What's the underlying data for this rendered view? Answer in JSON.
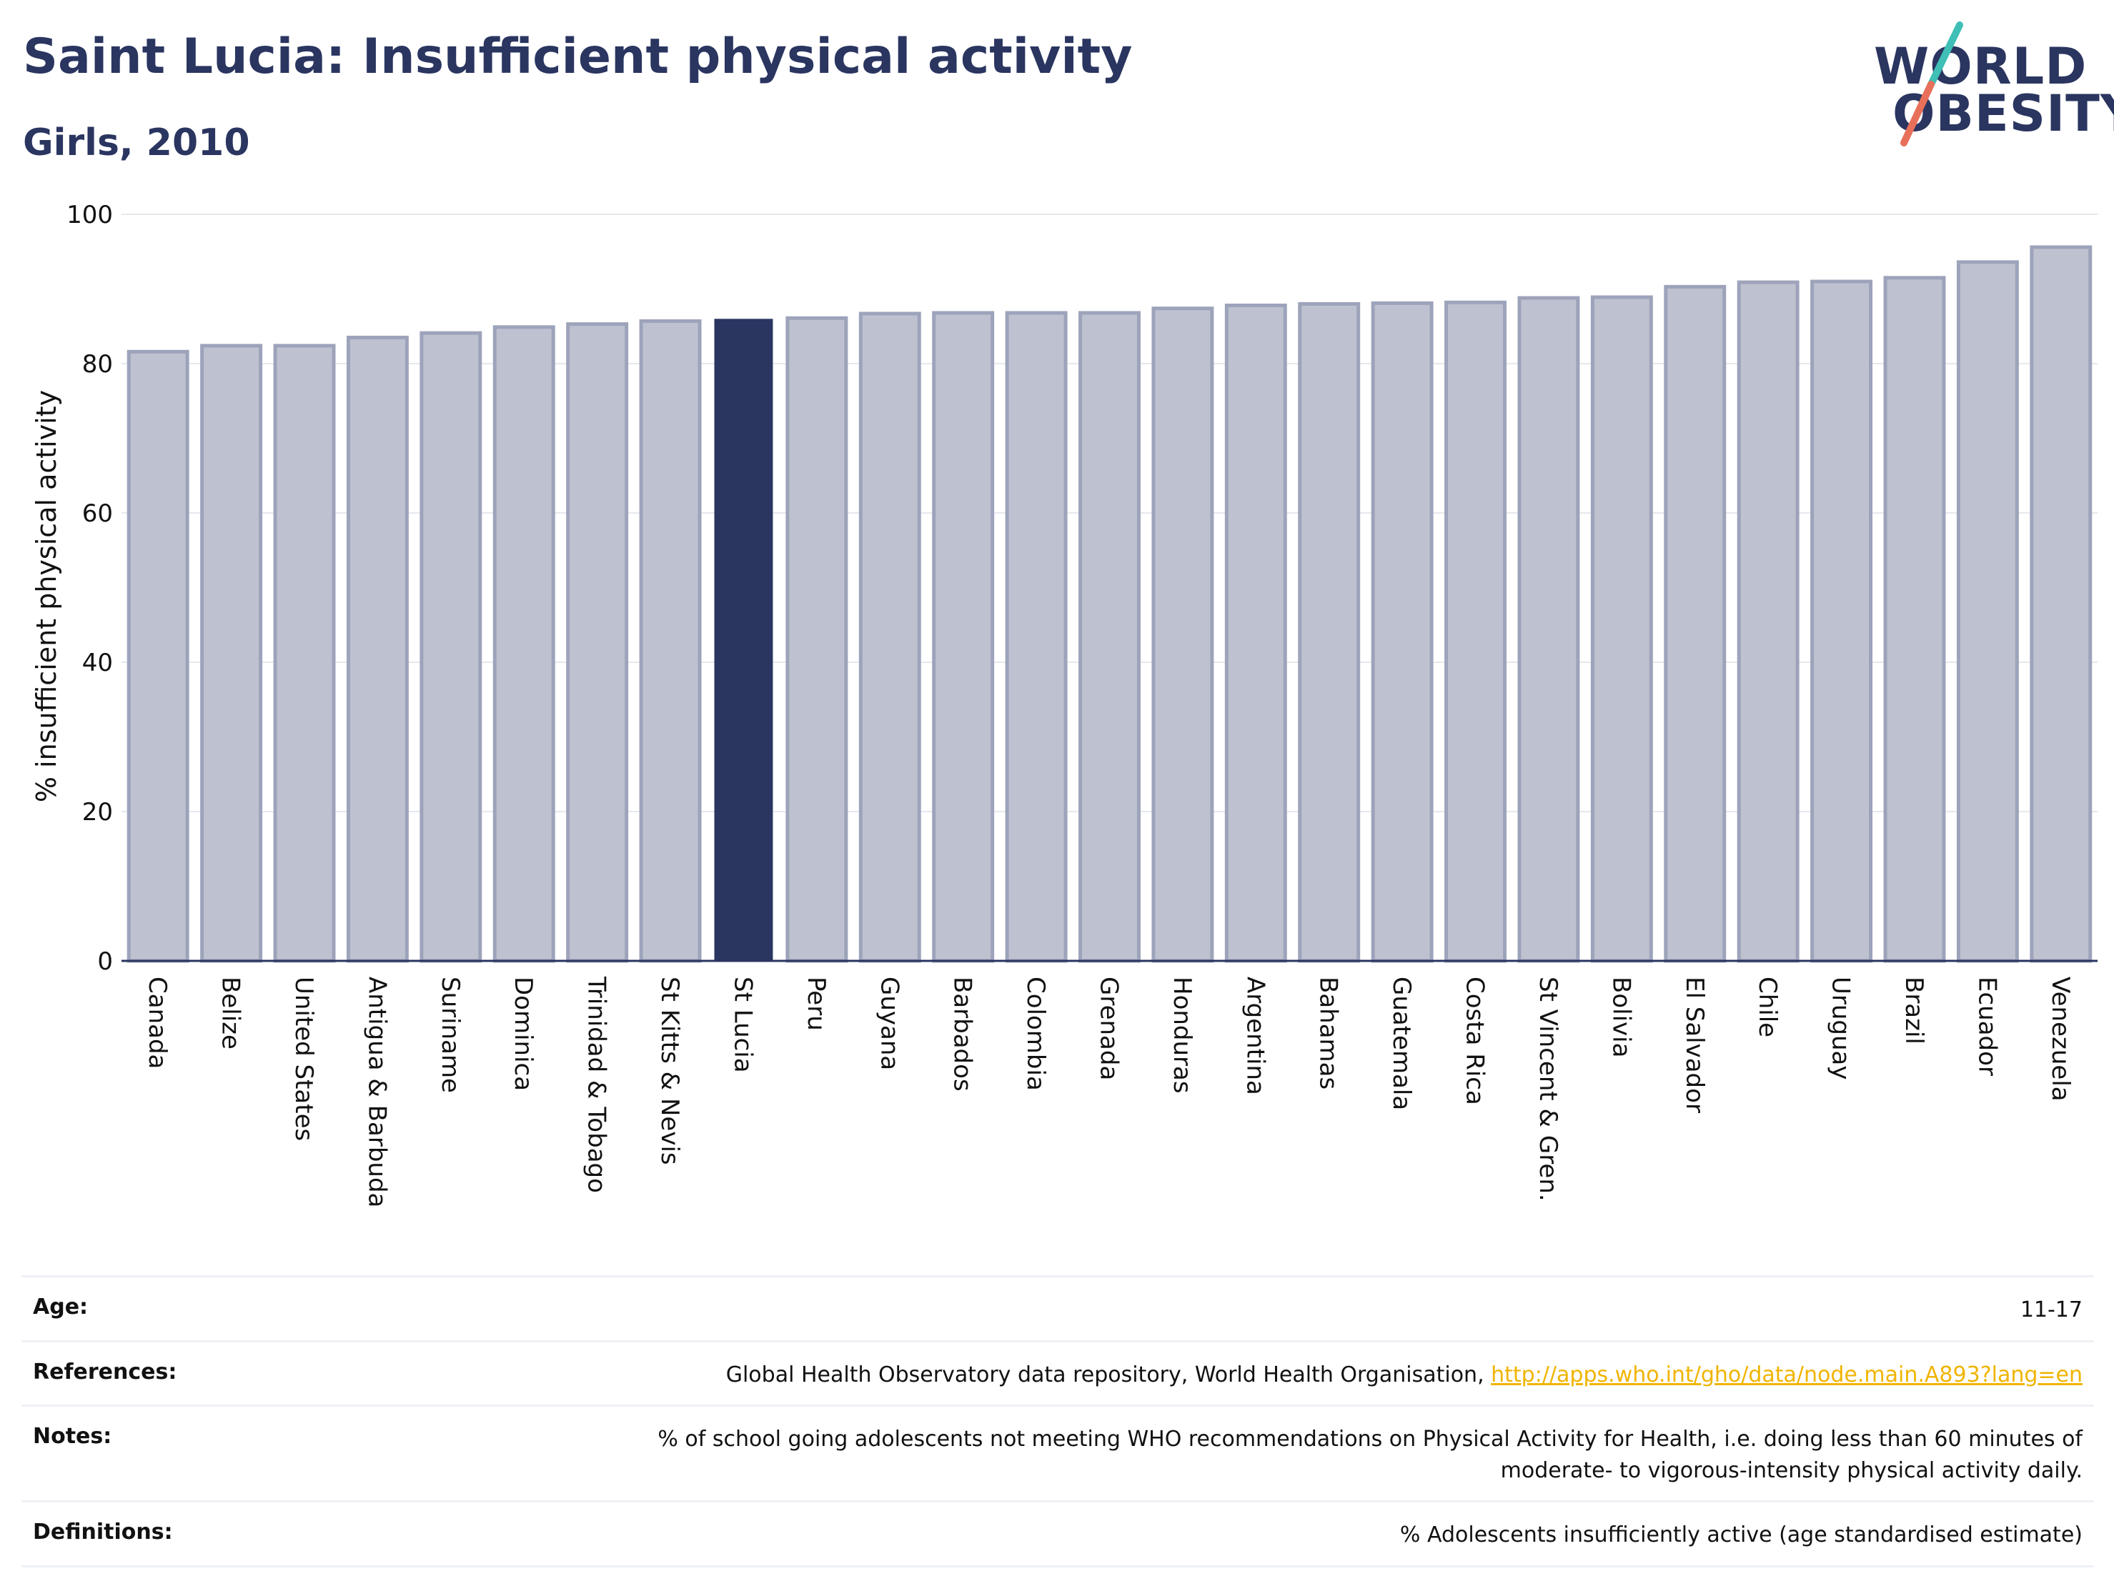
{
  "header": {
    "title": "Saint Lucia: Insufficient physical activity",
    "subtitle": "Girls, 2010"
  },
  "logo": {
    "line1": "WORLD",
    "line2": "OBESITY",
    "icon": "world-obesity-logo-slash",
    "colors": {
      "text": "#2a3560",
      "slash_top": "#3fbfb5",
      "slash_bottom": "#e8705a"
    }
  },
  "chart_data": {
    "type": "bar",
    "title": "Saint Lucia: Insufficient physical activity",
    "subtitle": "Girls, 2010",
    "xlabel": "",
    "ylabel": "% insufficient physical activity",
    "ylim": [
      0,
      100
    ],
    "yticks": [
      0,
      20,
      40,
      60,
      80,
      100
    ],
    "grid": true,
    "highlight": "St Lucia",
    "colors": {
      "bar": "#bec2d0",
      "bar_border": "#9da3ba",
      "highlight": "#2a3560",
      "grid": "#e6e8ee",
      "axis": "#2a3560"
    },
    "categories": [
      "Canada",
      "Belize",
      "United States",
      "Antigua & Barbuda",
      "Suriname",
      "Dominica",
      "Trinidad & Tobago",
      "St Kitts & Nevis",
      "St Lucia",
      "Peru",
      "Guyana",
      "Barbados",
      "Colombia",
      "Grenada",
      "Honduras",
      "Argentina",
      "Bahamas",
      "Guatemala",
      "Costa Rica",
      "St Vincent & Gren.",
      "Bolivia",
      "El Salvador",
      "Chile",
      "Uruguay",
      "Brazil",
      "Ecuador",
      "Venezuela"
    ],
    "values": [
      81.6,
      82.4,
      82.4,
      83.5,
      84.1,
      84.9,
      85.3,
      85.7,
      86.0,
      86.1,
      86.7,
      86.8,
      86.8,
      86.8,
      87.4,
      87.8,
      88.0,
      88.1,
      88.2,
      88.8,
      88.9,
      90.3,
      90.9,
      91.0,
      91.5,
      93.6,
      95.6
    ]
  },
  "notes": {
    "age_label": "Age:",
    "age_value": "11-17",
    "references_label": "References:",
    "references_text": "Global Health Observatory data repository, World Health Organisation, ",
    "references_link": "http://apps.who.int/gho/data/node.main.A893?lang=en",
    "notes_label": "Notes:",
    "notes_line1": "% of school going adolescents not meeting WHO recommendations on Physical Activity for Health, i.e. doing less than 60 minutes of",
    "notes_line2": "moderate- to vigorous-intensity physical activity daily.",
    "definitions_label": "Definitions:",
    "definitions_value": "% Adolescents insufficiently active (age standardised estimate)"
  }
}
